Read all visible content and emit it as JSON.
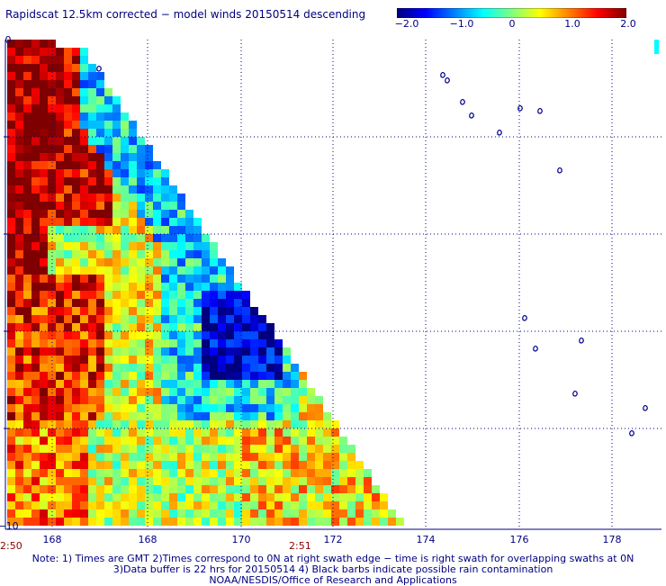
{
  "title": "Rapidscat 12.5km corrected − model winds 20150514 descending",
  "colorbar": {
    "ticks": [
      "−2.0",
      "−1.0",
      "0",
      "1.0",
      "2.0"
    ],
    "range": [
      -2.0,
      2.0
    ],
    "colors": [
      "#00007f",
      "#0000ff",
      "#007fff",
      "#00ffff",
      "#7fff7f",
      "#ffff00",
      "#ff7f00",
      "#ff0000",
      "#7f0000"
    ]
  },
  "time_labels": {
    "left": "2:50",
    "right": "2:51"
  },
  "notes": [
    "Note: 1) Times are GMT 2)Times correspond to 0N at right swath edge − time is right swath for overlapping swaths at 0N",
    "3)Data buffer is 22 hrs for 20150514 4) Black barbs indicate possible rain contamination",
    "NOAA/NESDIS/Office of Research and Applications"
  ],
  "chart_data": {
    "type": "heatmap",
    "title": "Rapidscat 12.5km corrected − model winds 20150514 descending",
    "variable": "corrected minus model wind speed difference",
    "colorbar_range": [
      -2.0,
      2.0
    ],
    "x_axis": {
      "tick_labels": [
        "168",
        "168",
        "170",
        "172",
        "174",
        "176",
        "178"
      ],
      "note": "longitude ticks as printed in the image"
    },
    "y_axis": {
      "tick_labels": [
        "0",
        "−10"
      ],
      "range": [
        -10,
        0
      ],
      "gridlines": 5
    },
    "grid": true,
    "swath": "diagonal swath edge from upper-left to lower-right; data only left of edge",
    "regions": [
      {
        "area": "far-left column band (top to middle)",
        "value": 1.9
      },
      {
        "area": "left edge near top, diagonal strip",
        "value": 1.6
      },
      {
        "area": "upper-middle diagonal strip",
        "value": -0.6
      },
      {
        "area": "center-left swath",
        "value": 0.6
      },
      {
        "area": "center-right near swath edge (lat approx -6)",
        "value": -1.8
      },
      {
        "area": "lower swath",
        "value": 0.4
      },
      {
        "area": "bottom-left",
        "value": 1.2
      }
    ]
  }
}
